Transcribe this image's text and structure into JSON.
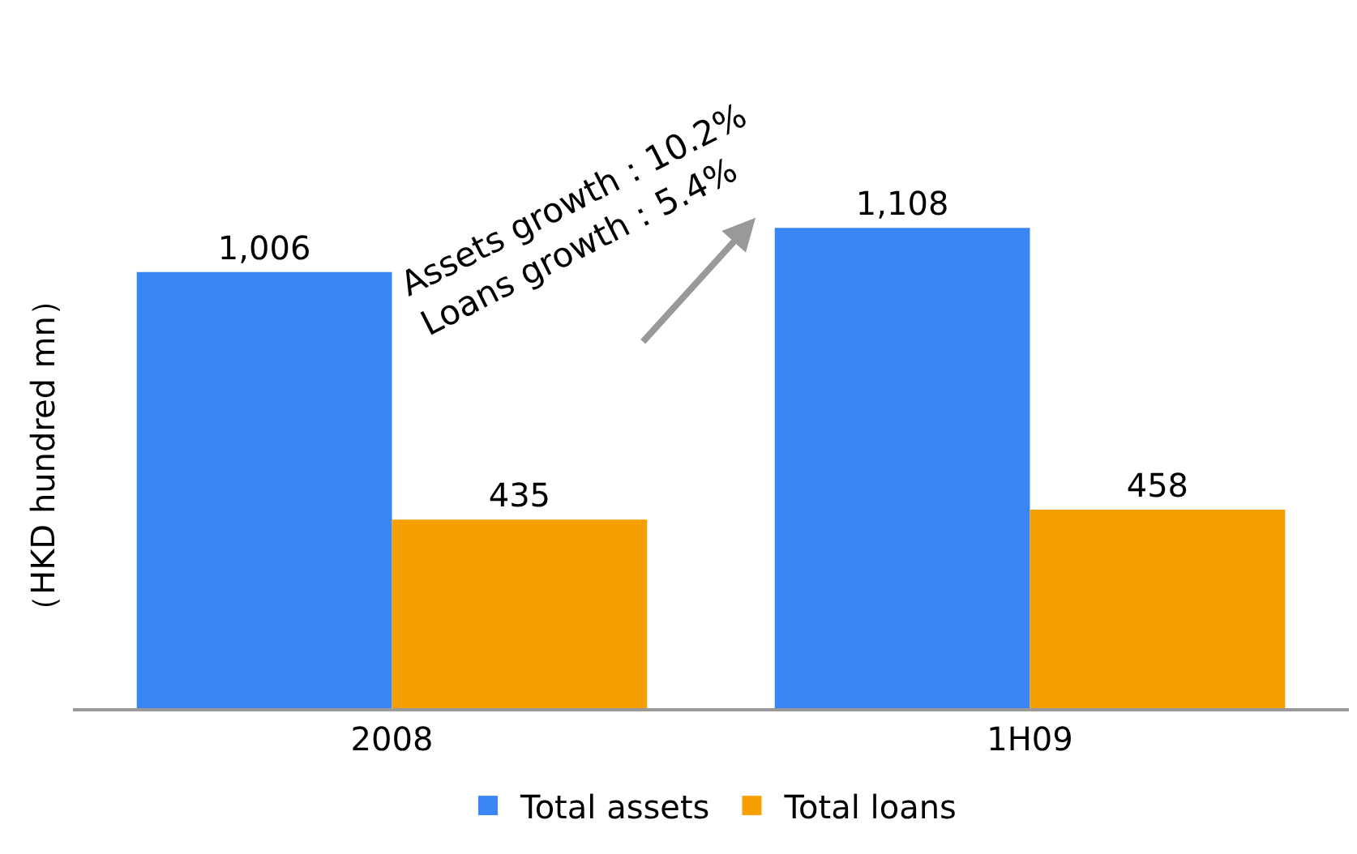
{
  "chart_data": {
    "type": "bar",
    "categories": [
      "2008",
      "1H09"
    ],
    "ylabel": "（HKD hundred mn）",
    "tick_labels": "x",
    "legend": "bottom",
    "series": [
      {
        "name": "Total assets",
        "color": "#3a86f5",
        "values": [
          1006,
          1108
        ],
        "value_labels": [
          "1,006",
          "1,108"
        ]
      },
      {
        "name": "Total loans",
        "color": "#f5a000",
        "values": [
          435,
          458
        ],
        "value_labels": [
          "435",
          "458"
        ]
      }
    ],
    "annotations": [
      "Assets growth：10.2%\nLoans growth：5.4%"
    ]
  }
}
